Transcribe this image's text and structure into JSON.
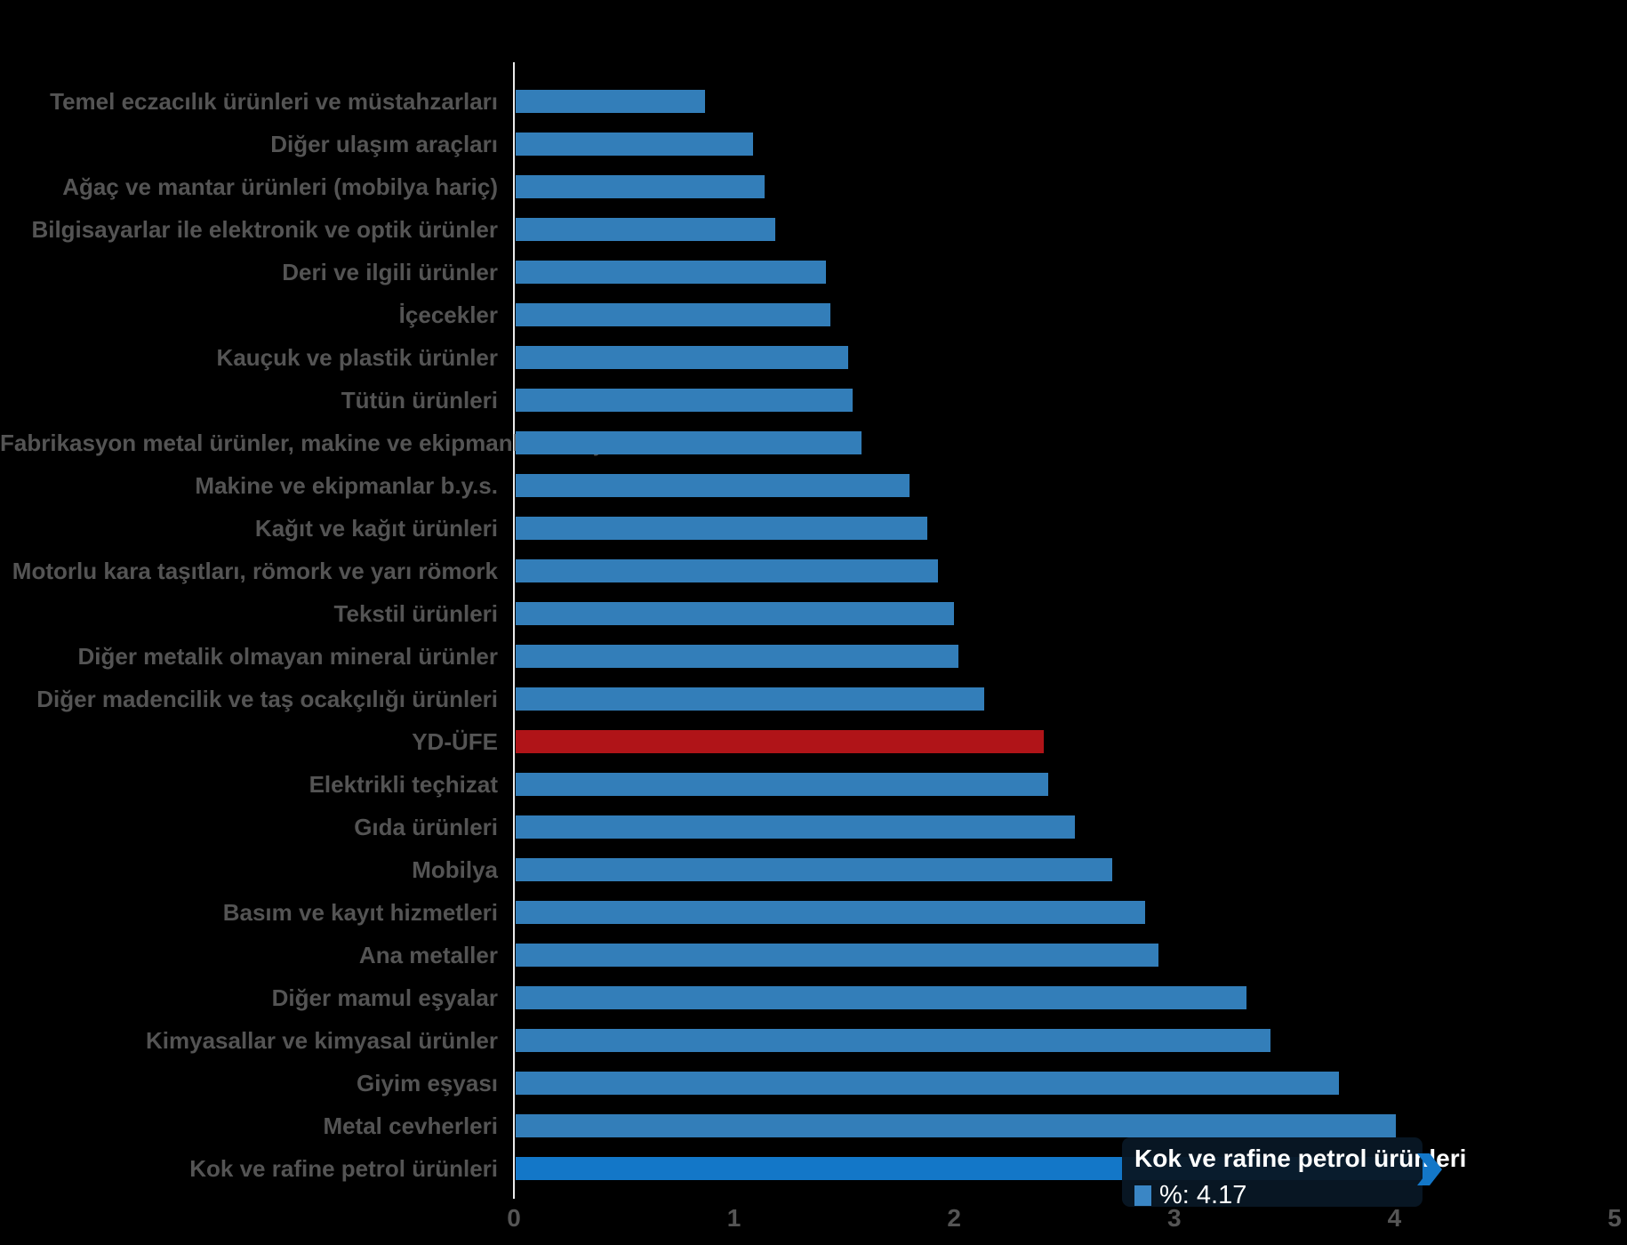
{
  "chart_data": {
    "type": "bar",
    "orientation": "horizontal",
    "title": "",
    "xlabel": "",
    "ylabel": "",
    "xlim": [
      0,
      5
    ],
    "x_ticks": [
      "0",
      "1",
      "2",
      "3",
      "4",
      "5"
    ],
    "grid": false,
    "categories": [
      "Temel eczacılık ürünleri ve müstahzarları",
      "Diğer ulaşım araçları",
      "Ağaç ve mantar ürünleri (mobilya hariç)",
      "Bilgisayarlar ile elektronik ve optik ürünler",
      "Deri ve ilgili ürünler",
      "İçecekler",
      "Kauçuk ve plastik ürünler",
      "Tütün ürünleri",
      "Fabrikasyon metal ürünler, makine ve ekipmanlar hariç",
      "Makine ve ekipmanlar b.y.s.",
      "Kağıt ve kağıt ürünleri",
      "Motorlu kara taşıtları, römork ve yarı römork",
      "Tekstil ürünleri",
      "Diğer metalik olmayan mineral ürünler",
      "Diğer madencilik ve taş ocakçılığı ürünleri",
      "YD-ÜFE",
      "Elektrikli teçhizat",
      "Gıda ürünleri",
      "Mobilya",
      "Basım ve kayıt hizmetleri",
      "Ana metaller",
      "Diğer mamul eşyalar",
      "Kimyasallar ve kimyasal ürünler",
      "Giyim eşyası",
      "Metal cevherleri",
      "Kok ve rafine petrol ürünleri"
    ],
    "values": [
      0.86,
      1.08,
      1.13,
      1.18,
      1.41,
      1.43,
      1.51,
      1.53,
      1.57,
      1.79,
      1.87,
      1.92,
      1.99,
      2.01,
      2.13,
      2.4,
      2.42,
      2.54,
      2.71,
      2.86,
      2.92,
      3.32,
      3.43,
      3.74,
      4.0,
      4.17
    ],
    "highlighted_category": "YD-ÜFE",
    "hovered_category": "Kok ve rafine petrol ürünleri",
    "colors": {
      "bar": "#337eb9",
      "bar_hovered": "#1377c8",
      "bar_highlight": "#b01418",
      "axis_line": "#ececec",
      "label_text": "#545454",
      "background": "#000000"
    }
  },
  "tooltip": {
    "title": "Kok ve rafine petrol ürünleri",
    "value_label": "%: 4.17",
    "value": 4.17,
    "swatch_color": "#3a86c5",
    "background": "rgba(8,23,37,0.95)"
  }
}
